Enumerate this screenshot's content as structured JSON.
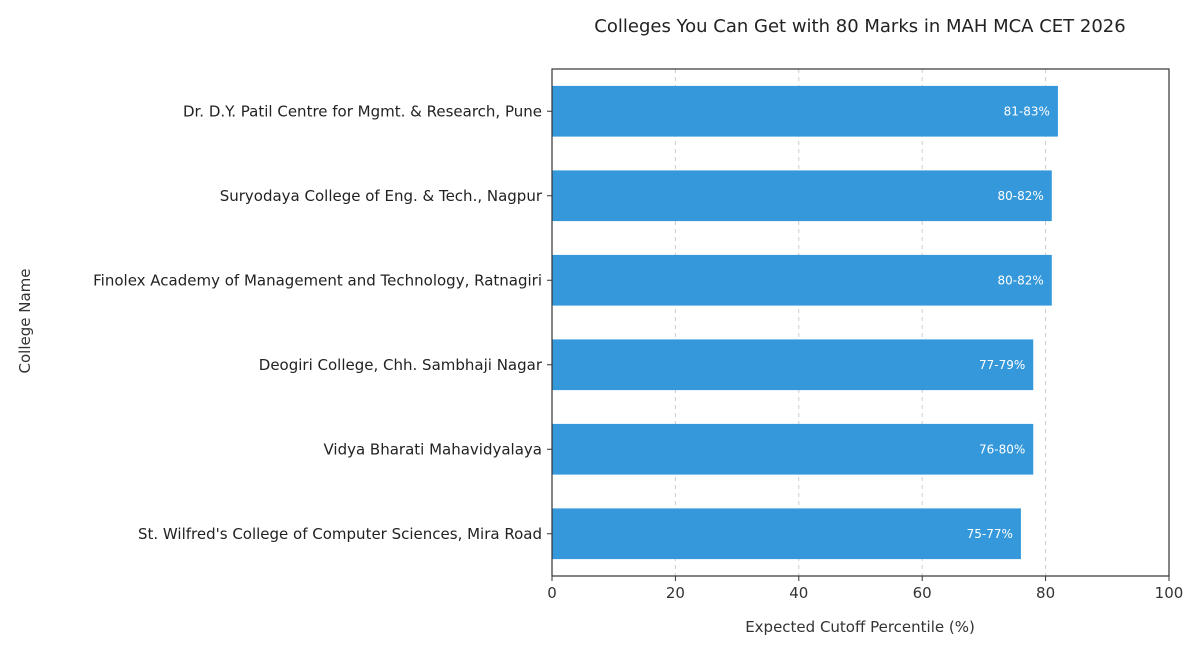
{
  "chart_data": {
    "type": "bar",
    "orientation": "horizontal",
    "title": "Colleges You Can Get with 80 Marks in MAH MCA CET 2026",
    "xlabel": "Expected Cutoff Percentile (%)",
    "ylabel": "College Name",
    "xlim": [
      0,
      100
    ],
    "xticks": [
      0,
      20,
      40,
      60,
      80,
      100
    ],
    "grid": "vertical dashed",
    "bar_color": "#3498db",
    "categories": [
      "Dr. D.Y. Patil Centre for Mgmt. & Research, Pune",
      "Suryodaya College of Eng. & Tech., Nagpur",
      "Finolex Academy of Management and Technology, Ratnagiri",
      "Deogiri College, Chh. Sambhaji Nagar",
      "Vidya Bharati Mahavidyalaya",
      "St. Wilfred's College of Computer Sciences, Mira Road"
    ],
    "values": [
      82,
      81,
      81,
      78,
      78,
      76
    ],
    "value_labels": [
      "81-83%",
      "80-82%",
      "80-82%",
      "77-79%",
      "76-80%",
      "75-77%"
    ]
  }
}
